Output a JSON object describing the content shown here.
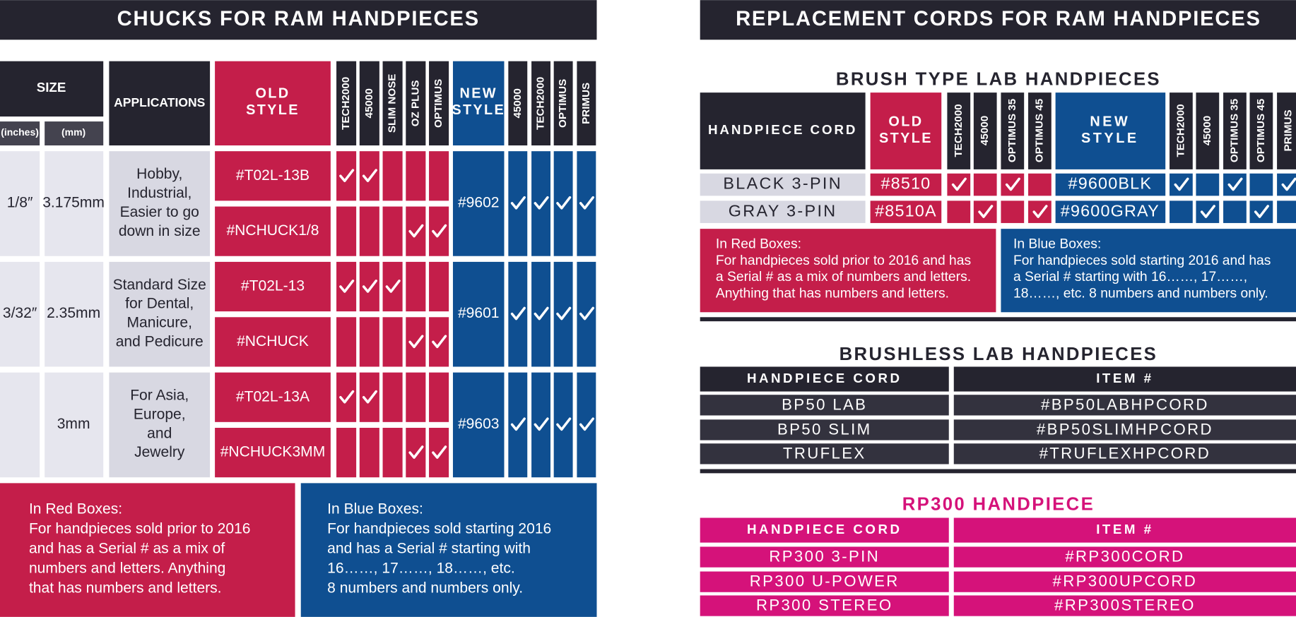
{
  "left": {
    "title": "CHUCKS FOR RAM HANDPIECES",
    "headers": {
      "size": "SIZE",
      "inches": "(inches)",
      "mm": "(mm)",
      "applications": "APPLICATIONS",
      "old_style": [
        "OLD",
        "STYLE"
      ],
      "new_style": [
        "NEW",
        "STYLE"
      ]
    },
    "old_models": [
      "TECH2000",
      "45000",
      "SLIM NOSE",
      "OZ PLUS",
      "OPTIMUS"
    ],
    "new_models": [
      "45000",
      "TECH2000",
      "OPTIMUS",
      "PRIMUS"
    ],
    "rows": [
      {
        "inches": "1/8″",
        "mm": "3.175mm",
        "applications": [
          "Hobby,",
          "Industrial,",
          "Easier to go",
          "down in size"
        ],
        "old": [
          {
            "item": "#T02L-13B",
            "checks": [
              true,
              true,
              false,
              false,
              false
            ]
          },
          {
            "item": "#NCHUCK1/8",
            "checks": [
              false,
              false,
              false,
              true,
              true
            ]
          }
        ],
        "new_item": "#9602",
        "new_checks": [
          true,
          true,
          true,
          true
        ]
      },
      {
        "inches": "3/32″",
        "mm": "2.35mm",
        "applications": [
          "Standard Size",
          "for Dental,",
          "Manicure,",
          "and Pedicure"
        ],
        "old": [
          {
            "item": "#T02L-13",
            "checks": [
              true,
              true,
              true,
              false,
              false
            ]
          },
          {
            "item": "#NCHUCK",
            "checks": [
              false,
              false,
              false,
              true,
              true
            ]
          }
        ],
        "new_item": "#9601",
        "new_checks": [
          true,
          true,
          true,
          true
        ]
      },
      {
        "mm": "3mm",
        "applications": [
          "For Asia,",
          "Europe,",
          "and",
          "Jewelry"
        ],
        "old": [
          {
            "item": "#T02L-13A",
            "checks": [
              true,
              true,
              false,
              false,
              false
            ]
          },
          {
            "item": "#NCHUCK3MM",
            "checks": [
              false,
              false,
              false,
              true,
              true
            ]
          }
        ],
        "new_item": "#9603",
        "new_checks": [
          true,
          true,
          true,
          true
        ]
      }
    ],
    "red_note": {
      "heading": "In Red Boxes:",
      "lines": [
        "For handpieces sold prior to 2016",
        "and has a Serial # as a mix of",
        "numbers and letters. Anything",
        "that has numbers and letters."
      ]
    },
    "blue_note": {
      "heading": "In Blue Boxes:",
      "lines": [
        "For handpieces sold starting 2016",
        "and has a Serial # starting with",
        "16……, 17……, 18……, etc.",
        "8 numbers and numbers only."
      ]
    }
  },
  "right": {
    "title": "REPLACEMENT CORDS FOR RAM HANDPIECES",
    "brush": {
      "title": "BRUSH TYPE LAB HANDPIECES",
      "cord_header": "HANDPIECE CORD",
      "old_style": [
        "OLD",
        "STYLE"
      ],
      "old_models": [
        "TECH2000",
        "45000",
        "OPTIMUS 35",
        "OPTIMUS 45"
      ],
      "new_style": [
        "NEW",
        "STYLE"
      ],
      "new_models": [
        "TECH2000",
        "45000",
        "OPTIMUS 35",
        "OPTIMUS 45",
        "PRIMUS"
      ],
      "rows": [
        {
          "cord": "BLACK 3-PIN",
          "old_item": "#8510",
          "old_checks": [
            true,
            false,
            true,
            false
          ],
          "new_item": "#9600BLK",
          "new_checks": [
            true,
            false,
            true,
            false,
            true
          ]
        },
        {
          "cord": "GRAY 3-PIN",
          "old_item": "#8510A",
          "old_checks": [
            false,
            true,
            false,
            true
          ],
          "new_item": "#9600GRAY",
          "new_checks": [
            false,
            true,
            false,
            true,
            false
          ]
        }
      ],
      "red_note": {
        "heading": "In Red Boxes:",
        "lines": [
          "For handpieces sold prior to 2016 and has",
          "a Serial # as a mix of numbers and letters.",
          "Anything that has numbers and letters."
        ]
      },
      "blue_note": {
        "heading": "In Blue Boxes:",
        "lines": [
          "For handpieces sold starting 2016 and has",
          "a Serial # starting with 16……, 17……,",
          "18……, etc. 8 numbers and numbers only."
        ]
      }
    },
    "brushless": {
      "title": "BRUSHLESS LAB HANDPIECES",
      "headers": [
        "HANDPIECE CORD",
        "ITEM #"
      ],
      "rows": [
        [
          "BP50 LAB",
          "#BP50LABHPCORD"
        ],
        [
          "BP50 SLIM",
          "#BP50SLIMHPCORD"
        ],
        [
          "TRUFLEX",
          "#TRUFLEXHPCORD"
        ]
      ]
    },
    "rp300": {
      "title": "RP300 HANDPIECE",
      "headers": [
        "HANDPIECE CORD",
        "ITEM #"
      ],
      "rows": [
        [
          "RP300 3-PIN",
          "#RP300CORD"
        ],
        [
          "RP300 U-POWER",
          "#RP300UPCORD"
        ],
        [
          "RP300 STEREO",
          "#RP300STEREO"
        ]
      ]
    }
  }
}
